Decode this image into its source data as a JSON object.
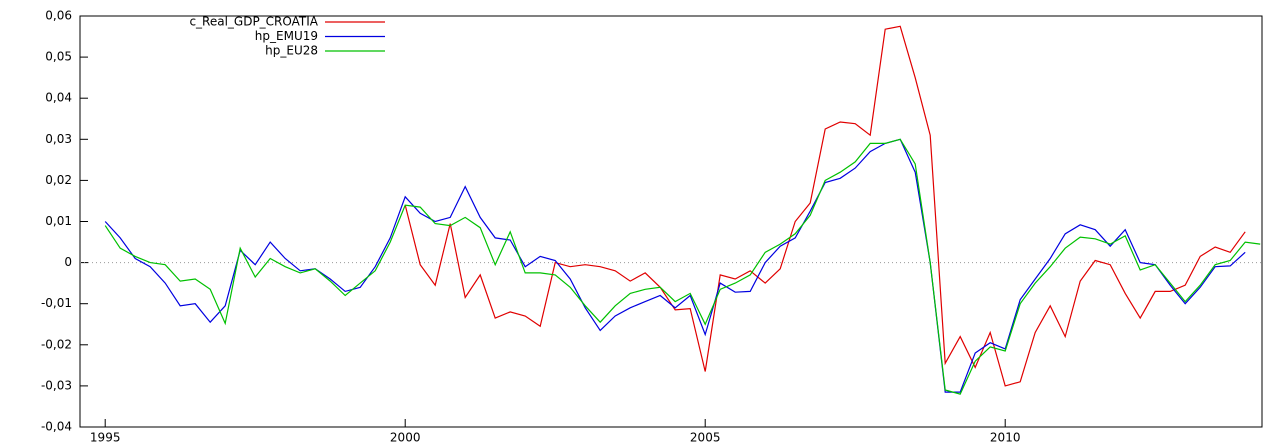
{
  "chart_data": {
    "type": "line",
    "x": [
      1995,
      1995.25,
      1995.5,
      1995.75,
      1996,
      1996.25,
      1996.5,
      1996.75,
      1997,
      1997.25,
      1997.5,
      1997.75,
      1998,
      1998.25,
      1998.5,
      1998.75,
      1999,
      1999.25,
      1999.5,
      1999.75,
      2000,
      2000.25,
      2000.5,
      2000.75,
      2001,
      2001.25,
      2001.5,
      2001.75,
      2002,
      2002.25,
      2002.5,
      2002.75,
      2003,
      2003.25,
      2003.5,
      2003.75,
      2004,
      2004.25,
      2004.5,
      2004.75,
      2005,
      2005.25,
      2005.5,
      2005.75,
      2006,
      2006.25,
      2006.5,
      2006.75,
      2007,
      2007.25,
      2007.5,
      2007.75,
      2008,
      2008.25,
      2008.5,
      2008.75,
      2009,
      2009.25,
      2009.5,
      2009.75,
      2010,
      2010.25,
      2010.5,
      2010.75,
      2011,
      2011.25,
      2011.5,
      2011.75,
      2012,
      2012.25,
      2012.5,
      2012.75,
      2013,
      2013.25,
      2013.5,
      2013.75,
      2014,
      2014.25
    ],
    "series": [
      {
        "name": "c_Real_GDP_CROATIA",
        "color": "#e00000",
        "values": [
          null,
          null,
          null,
          null,
          null,
          null,
          null,
          null,
          null,
          null,
          null,
          null,
          null,
          null,
          null,
          null,
          null,
          null,
          null,
          null,
          0.014,
          -0.0005,
          -0.0055,
          0.0095,
          -0.0085,
          -0.003,
          -0.0135,
          -0.012,
          -0.013,
          -0.0155,
          0.0,
          -0.001,
          -0.0005,
          -0.001,
          -0.002,
          -0.0045,
          -0.0025,
          -0.006,
          -0.0115,
          -0.0112,
          -0.0265,
          -0.003,
          -0.004,
          -0.002,
          -0.005,
          -0.0015,
          0.01,
          0.0145,
          0.0325,
          0.0342,
          0.0338,
          0.031,
          0.0568,
          0.0575,
          0.045,
          0.031,
          -0.0245,
          -0.018,
          -0.0255,
          -0.017,
          -0.03,
          -0.029,
          -0.017,
          -0.0105,
          -0.018,
          -0.0045,
          0.0005,
          -0.0005,
          -0.0075,
          -0.0135,
          -0.007,
          -0.007,
          -0.0055,
          0.0015,
          0.0038,
          0.0025,
          0.0075,
          null
        ]
      },
      {
        "name": "hp_EMU19",
        "color": "#0000e0",
        "values": [
          0.01,
          0.006,
          0.001,
          -0.001,
          -0.005,
          -0.0105,
          -0.01,
          -0.0145,
          -0.0105,
          0.003,
          -0.0005,
          0.005,
          0.001,
          -0.002,
          -0.0015,
          -0.004,
          -0.007,
          -0.006,
          -0.001,
          0.006,
          0.016,
          0.012,
          0.01,
          0.011,
          0.0185,
          0.011,
          0.006,
          0.0055,
          -0.001,
          0.0015,
          0.0005,
          -0.004,
          -0.011,
          -0.0165,
          -0.013,
          -0.011,
          -0.0095,
          -0.008,
          -0.011,
          -0.008,
          -0.0175,
          -0.005,
          -0.0072,
          -0.007,
          0.0,
          0.004,
          0.006,
          0.0125,
          0.0195,
          0.0205,
          0.023,
          0.027,
          0.029,
          0.03,
          0.022,
          0.0,
          -0.0315,
          -0.0315,
          -0.022,
          -0.0195,
          -0.021,
          -0.009,
          -0.004,
          0.001,
          0.007,
          0.0092,
          0.008,
          0.004,
          0.008,
          0.0,
          -0.0005,
          -0.0055,
          -0.01,
          -0.006,
          -0.001,
          -0.0008,
          0.0025,
          null
        ]
      },
      {
        "name": "hp_EU28",
        "color": "#00c000",
        "values": [
          0.009,
          0.0035,
          0.0015,
          0.0,
          -0.0005,
          -0.0045,
          -0.004,
          -0.0065,
          -0.0148,
          0.0035,
          -0.0035,
          0.001,
          -0.001,
          -0.0025,
          -0.0015,
          -0.0045,
          -0.008,
          -0.005,
          -0.002,
          0.005,
          0.014,
          0.0135,
          0.0095,
          0.009,
          0.011,
          0.0085,
          -0.0005,
          0.0075,
          -0.0025,
          -0.0025,
          -0.003,
          -0.006,
          -0.0105,
          -0.0145,
          -0.0105,
          -0.0075,
          -0.0065,
          -0.006,
          -0.0095,
          -0.0075,
          -0.015,
          -0.0065,
          -0.005,
          -0.003,
          0.0025,
          0.0045,
          0.007,
          0.0115,
          0.02,
          0.022,
          0.0245,
          0.029,
          0.029,
          0.03,
          0.024,
          0.0,
          -0.031,
          -0.032,
          -0.024,
          -0.0205,
          -0.0215,
          -0.01,
          -0.005,
          -0.001,
          0.0035,
          0.0062,
          0.0058,
          0.0045,
          0.0065,
          -0.0018,
          -0.0005,
          -0.005,
          -0.0095,
          -0.0055,
          -0.0005,
          0.0005,
          0.005,
          0.0045
        ]
      }
    ],
    "xlim": [
      1994.58,
      2014.28
    ],
    "xticks": [
      1995,
      2000,
      2005,
      2010
    ],
    "ylim": [
      -0.04,
      0.06
    ],
    "yticks": [
      {
        "value": -0.04,
        "label": "-0,04"
      },
      {
        "value": -0.03,
        "label": "-0,03"
      },
      {
        "value": -0.02,
        "label": "-0,02"
      },
      {
        "value": -0.01,
        "label": "-0,01"
      },
      0,
      {
        "value": 0.01,
        "label": "0,01"
      },
      {
        "value": 0.02,
        "label": "0,02"
      },
      {
        "value": 0.03,
        "label": "0,03"
      },
      {
        "value": 0.04,
        "label": "0,04"
      },
      {
        "value": 0.05,
        "label": "0,05"
      },
      {
        "value": 0.06,
        "label": "0,06"
      }
    ],
    "zero_line": true,
    "legend": "top-left"
  }
}
